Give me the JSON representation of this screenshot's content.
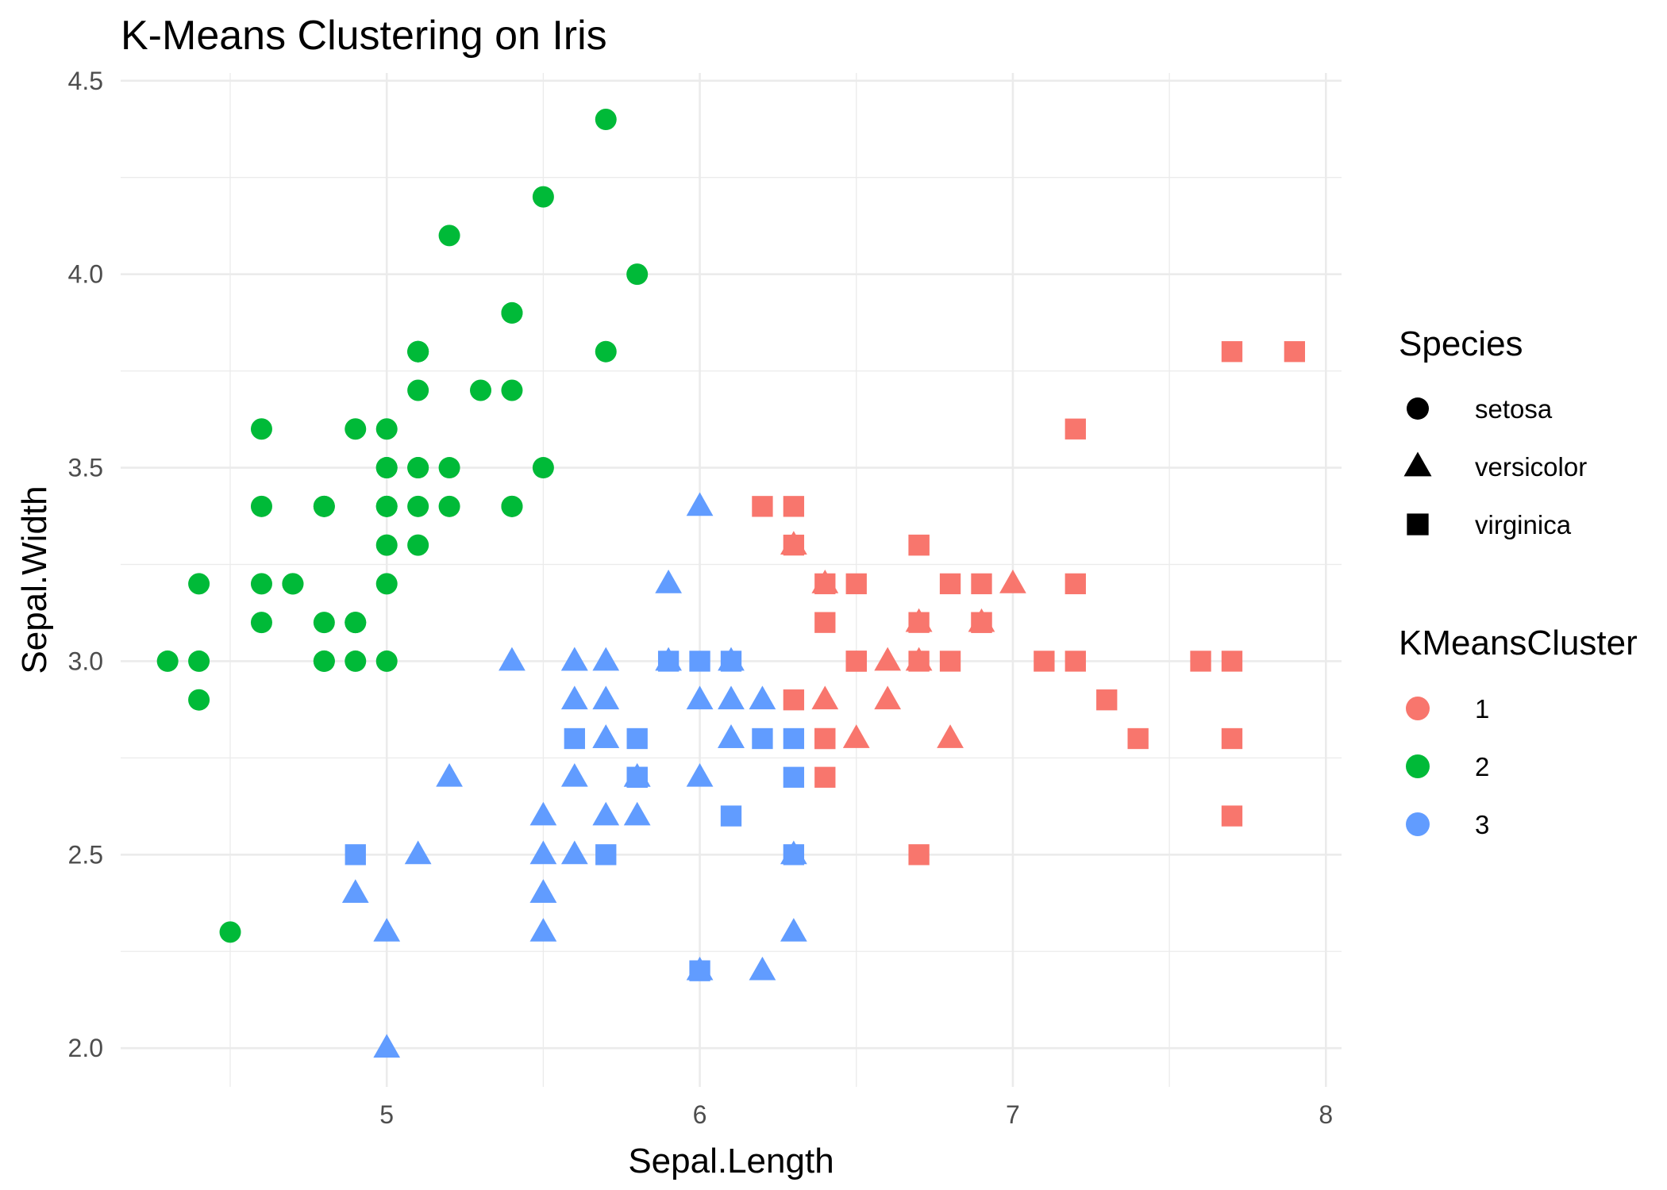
{
  "chart_data": {
    "type": "scatter",
    "title": "K-Means Clustering on Iris",
    "xlabel": "Sepal.Length",
    "ylabel": "Sepal.Width",
    "xlim": [
      4.15,
      8.05
    ],
    "ylim": [
      1.9,
      4.52
    ],
    "x_ticks": [
      5,
      6,
      7,
      8
    ],
    "y_ticks": [
      2.0,
      2.5,
      3.0,
      3.5,
      4.0,
      4.5
    ],
    "x_tick_labels": [
      "5",
      "6",
      "7",
      "8"
    ],
    "y_tick_labels": [
      "2.0",
      "2.5",
      "3.0",
      "3.5",
      "4.0",
      "4.5"
    ],
    "grid": true,
    "legend_position": "right",
    "shape_legend": {
      "title": "Species",
      "items": [
        {
          "label": "setosa",
          "shape": "circle"
        },
        {
          "label": "versicolor",
          "shape": "triangle"
        },
        {
          "label": "virginica",
          "shape": "square"
        }
      ]
    },
    "color_legend": {
      "title": "KMeansCluster",
      "items": [
        {
          "label": "1",
          "color": "#F8766D"
        },
        {
          "label": "2",
          "color": "#00BA38"
        },
        {
          "label": "3",
          "color": "#619CFF"
        }
      ]
    },
    "points": [
      [
        5.1,
        3.5,
        "setosa",
        "2"
      ],
      [
        4.9,
        3.0,
        "setosa",
        "2"
      ],
      [
        4.7,
        3.2,
        "setosa",
        "2"
      ],
      [
        4.6,
        3.1,
        "setosa",
        "2"
      ],
      [
        5.0,
        3.6,
        "setosa",
        "2"
      ],
      [
        5.4,
        3.9,
        "setosa",
        "2"
      ],
      [
        4.6,
        3.4,
        "setosa",
        "2"
      ],
      [
        5.0,
        3.4,
        "setosa",
        "2"
      ],
      [
        4.4,
        2.9,
        "setosa",
        "2"
      ],
      [
        4.9,
        3.1,
        "setosa",
        "2"
      ],
      [
        5.4,
        3.7,
        "setosa",
        "2"
      ],
      [
        4.8,
        3.4,
        "setosa",
        "2"
      ],
      [
        4.8,
        3.0,
        "setosa",
        "2"
      ],
      [
        4.3,
        3.0,
        "setosa",
        "2"
      ],
      [
        5.8,
        4.0,
        "setosa",
        "2"
      ],
      [
        5.7,
        4.4,
        "setosa",
        "2"
      ],
      [
        5.4,
        3.9,
        "setosa",
        "2"
      ],
      [
        5.1,
        3.5,
        "setosa",
        "2"
      ],
      [
        5.7,
        3.8,
        "setosa",
        "2"
      ],
      [
        5.1,
        3.8,
        "setosa",
        "2"
      ],
      [
        5.4,
        3.4,
        "setosa",
        "2"
      ],
      [
        5.1,
        3.7,
        "setosa",
        "2"
      ],
      [
        4.6,
        3.6,
        "setosa",
        "2"
      ],
      [
        5.1,
        3.3,
        "setosa",
        "2"
      ],
      [
        4.8,
        3.4,
        "setosa",
        "2"
      ],
      [
        5.0,
        3.0,
        "setosa",
        "2"
      ],
      [
        5.0,
        3.4,
        "setosa",
        "2"
      ],
      [
        5.2,
        3.5,
        "setosa",
        "2"
      ],
      [
        5.2,
        3.4,
        "setosa",
        "2"
      ],
      [
        4.7,
        3.2,
        "setosa",
        "2"
      ],
      [
        4.8,
        3.1,
        "setosa",
        "2"
      ],
      [
        5.4,
        3.4,
        "setosa",
        "2"
      ],
      [
        5.2,
        4.1,
        "setosa",
        "2"
      ],
      [
        5.5,
        4.2,
        "setosa",
        "2"
      ],
      [
        4.9,
        3.1,
        "setosa",
        "2"
      ],
      [
        5.0,
        3.2,
        "setosa",
        "2"
      ],
      [
        5.5,
        3.5,
        "setosa",
        "2"
      ],
      [
        4.9,
        3.6,
        "setosa",
        "2"
      ],
      [
        4.4,
        3.0,
        "setosa",
        "2"
      ],
      [
        5.1,
        3.4,
        "setosa",
        "2"
      ],
      [
        5.0,
        3.5,
        "setosa",
        "2"
      ],
      [
        4.5,
        2.3,
        "setosa",
        "2"
      ],
      [
        4.4,
        3.2,
        "setosa",
        "2"
      ],
      [
        5.0,
        3.5,
        "setosa",
        "2"
      ],
      [
        5.1,
        3.8,
        "setosa",
        "2"
      ],
      [
        4.8,
        3.0,
        "setosa",
        "2"
      ],
      [
        5.1,
        3.8,
        "setosa",
        "2"
      ],
      [
        4.6,
        3.2,
        "setosa",
        "2"
      ],
      [
        5.3,
        3.7,
        "setosa",
        "2"
      ],
      [
        5.0,
        3.3,
        "setosa",
        "2"
      ],
      [
        7.0,
        3.2,
        "versicolor",
        "1"
      ],
      [
        6.4,
        3.2,
        "versicolor",
        "1"
      ],
      [
        6.9,
        3.1,
        "versicolor",
        "1"
      ],
      [
        5.5,
        2.3,
        "versicolor",
        "3"
      ],
      [
        6.5,
        2.8,
        "versicolor",
        "1"
      ],
      [
        5.7,
        2.8,
        "versicolor",
        "3"
      ],
      [
        6.3,
        3.3,
        "versicolor",
        "1"
      ],
      [
        4.9,
        2.4,
        "versicolor",
        "3"
      ],
      [
        6.6,
        2.9,
        "versicolor",
        "1"
      ],
      [
        5.2,
        2.7,
        "versicolor",
        "3"
      ],
      [
        5.0,
        2.0,
        "versicolor",
        "3"
      ],
      [
        5.9,
        3.0,
        "versicolor",
        "3"
      ],
      [
        6.0,
        2.2,
        "versicolor",
        "3"
      ],
      [
        6.1,
        2.9,
        "versicolor",
        "3"
      ],
      [
        5.6,
        2.9,
        "versicolor",
        "3"
      ],
      [
        6.7,
        3.1,
        "versicolor",
        "1"
      ],
      [
        5.6,
        3.0,
        "versicolor",
        "3"
      ],
      [
        5.8,
        2.7,
        "versicolor",
        "3"
      ],
      [
        6.2,
        2.2,
        "versicolor",
        "3"
      ],
      [
        5.6,
        2.5,
        "versicolor",
        "3"
      ],
      [
        5.9,
        3.2,
        "versicolor",
        "3"
      ],
      [
        6.1,
        2.8,
        "versicolor",
        "3"
      ],
      [
        6.3,
        2.5,
        "versicolor",
        "3"
      ],
      [
        6.1,
        2.8,
        "versicolor",
        "3"
      ],
      [
        6.4,
        2.9,
        "versicolor",
        "1"
      ],
      [
        6.6,
        3.0,
        "versicolor",
        "1"
      ],
      [
        6.8,
        2.8,
        "versicolor",
        "1"
      ],
      [
        6.7,
        3.0,
        "versicolor",
        "1"
      ],
      [
        6.0,
        2.9,
        "versicolor",
        "3"
      ],
      [
        5.7,
        2.6,
        "versicolor",
        "3"
      ],
      [
        5.5,
        2.4,
        "versicolor",
        "3"
      ],
      [
        5.5,
        2.4,
        "versicolor",
        "3"
      ],
      [
        5.8,
        2.7,
        "versicolor",
        "3"
      ],
      [
        6.0,
        2.7,
        "versicolor",
        "3"
      ],
      [
        5.4,
        3.0,
        "versicolor",
        "3"
      ],
      [
        6.0,
        3.4,
        "versicolor",
        "3"
      ],
      [
        6.7,
        3.1,
        "versicolor",
        "1"
      ],
      [
        6.3,
        2.3,
        "versicolor",
        "3"
      ],
      [
        5.6,
        3.0,
        "versicolor",
        "3"
      ],
      [
        5.5,
        2.5,
        "versicolor",
        "3"
      ],
      [
        5.5,
        2.6,
        "versicolor",
        "3"
      ],
      [
        6.1,
        3.0,
        "versicolor",
        "3"
      ],
      [
        5.8,
        2.6,
        "versicolor",
        "3"
      ],
      [
        5.0,
        2.3,
        "versicolor",
        "3"
      ],
      [
        5.6,
        2.7,
        "versicolor",
        "3"
      ],
      [
        5.7,
        3.0,
        "versicolor",
        "3"
      ],
      [
        5.7,
        2.9,
        "versicolor",
        "3"
      ],
      [
        6.2,
        2.9,
        "versicolor",
        "3"
      ],
      [
        5.1,
        2.5,
        "versicolor",
        "3"
      ],
      [
        5.7,
        2.8,
        "versicolor",
        "3"
      ],
      [
        6.3,
        3.3,
        "virginica",
        "1"
      ],
      [
        5.8,
        2.7,
        "virginica",
        "3"
      ],
      [
        7.1,
        3.0,
        "virginica",
        "1"
      ],
      [
        6.3,
        2.9,
        "virginica",
        "1"
      ],
      [
        6.5,
        3.0,
        "virginica",
        "1"
      ],
      [
        7.6,
        3.0,
        "virginica",
        "1"
      ],
      [
        4.9,
        2.5,
        "virginica",
        "3"
      ],
      [
        7.3,
        2.9,
        "virginica",
        "1"
      ],
      [
        6.7,
        2.5,
        "virginica",
        "1"
      ],
      [
        7.2,
        3.6,
        "virginica",
        "1"
      ],
      [
        6.5,
        3.2,
        "virginica",
        "1"
      ],
      [
        6.4,
        2.7,
        "virginica",
        "1"
      ],
      [
        6.8,
        3.0,
        "virginica",
        "1"
      ],
      [
        5.7,
        2.5,
        "virginica",
        "3"
      ],
      [
        5.8,
        2.8,
        "virginica",
        "3"
      ],
      [
        6.4,
        3.2,
        "virginica",
        "1"
      ],
      [
        6.5,
        3.0,
        "virginica",
        "1"
      ],
      [
        7.7,
        3.8,
        "virginica",
        "1"
      ],
      [
        7.7,
        2.6,
        "virginica",
        "1"
      ],
      [
        6.0,
        2.2,
        "virginica",
        "3"
      ],
      [
        6.9,
        3.2,
        "virginica",
        "1"
      ],
      [
        5.6,
        2.8,
        "virginica",
        "3"
      ],
      [
        7.7,
        2.8,
        "virginica",
        "1"
      ],
      [
        6.3,
        2.7,
        "virginica",
        "3"
      ],
      [
        6.7,
        3.3,
        "virginica",
        "1"
      ],
      [
        7.2,
        3.2,
        "virginica",
        "1"
      ],
      [
        6.2,
        2.8,
        "virginica",
        "3"
      ],
      [
        6.1,
        3.0,
        "virginica",
        "3"
      ],
      [
        6.4,
        2.8,
        "virginica",
        "1"
      ],
      [
        7.2,
        3.0,
        "virginica",
        "1"
      ],
      [
        7.4,
        2.8,
        "virginica",
        "1"
      ],
      [
        7.9,
        3.8,
        "virginica",
        "1"
      ],
      [
        6.4,
        2.8,
        "virginica",
        "1"
      ],
      [
        6.3,
        2.8,
        "virginica",
        "3"
      ],
      [
        6.1,
        2.6,
        "virginica",
        "3"
      ],
      [
        7.7,
        3.0,
        "virginica",
        "1"
      ],
      [
        6.3,
        3.4,
        "virginica",
        "1"
      ],
      [
        6.4,
        3.1,
        "virginica",
        "1"
      ],
      [
        6.0,
        3.0,
        "virginica",
        "3"
      ],
      [
        6.9,
        3.1,
        "virginica",
        "1"
      ],
      [
        6.7,
        3.1,
        "virginica",
        "1"
      ],
      [
        6.9,
        3.1,
        "virginica",
        "1"
      ],
      [
        5.8,
        2.7,
        "virginica",
        "3"
      ],
      [
        6.8,
        3.2,
        "virginica",
        "1"
      ],
      [
        6.7,
        3.3,
        "virginica",
        "1"
      ],
      [
        6.7,
        3.0,
        "virginica",
        "1"
      ],
      [
        6.3,
        2.5,
        "virginica",
        "3"
      ],
      [
        6.5,
        3.0,
        "virginica",
        "1"
      ],
      [
        6.2,
        3.4,
        "virginica",
        "1"
      ],
      [
        5.9,
        3.0,
        "virginica",
        "3"
      ]
    ]
  }
}
